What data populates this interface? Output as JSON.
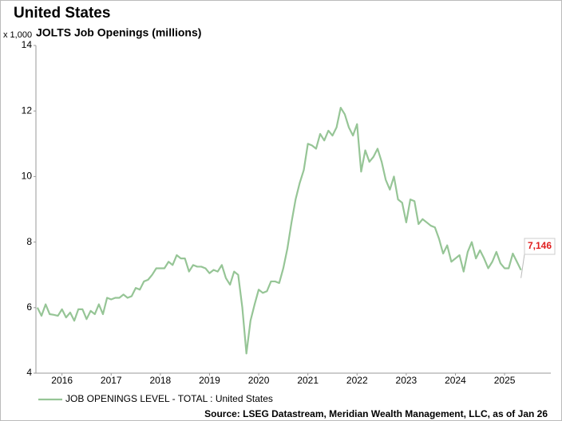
{
  "chart_data": {
    "type": "line",
    "title": "United States",
    "subtitle": "JOLTS Job Openings (millions)",
    "y_unit_label": "x 1,000",
    "source": "Source: LSEG Datastream, Meridian Wealth Management, LLC, as of Jan 26",
    "xlim": [
      2015.97,
      2026.44
    ],
    "xticks": [
      {
        "value": 2016.5,
        "label": "2016"
      },
      {
        "value": 2017.5,
        "label": "2017"
      },
      {
        "value": 2018.5,
        "label": "2018"
      },
      {
        "value": 2019.5,
        "label": "2019"
      },
      {
        "value": 2020.5,
        "label": "2020"
      },
      {
        "value": 2021.5,
        "label": "2021"
      },
      {
        "value": 2022.5,
        "label": "2022"
      },
      {
        "value": 2023.5,
        "label": "2023"
      },
      {
        "value": 2024.5,
        "label": "2024"
      },
      {
        "value": 2025.5,
        "label": "2025"
      }
    ],
    "ylim": [
      4,
      14
    ],
    "yticks": [
      4,
      6,
      8,
      10,
      12,
      14
    ],
    "grid": false,
    "x": [
      2016.0,
      2016.083,
      2016.167,
      2016.25,
      2016.333,
      2016.417,
      2016.5,
      2016.583,
      2016.667,
      2016.75,
      2016.833,
      2016.917,
      2017.0,
      2017.083,
      2017.167,
      2017.25,
      2017.333,
      2017.417,
      2017.5,
      2017.583,
      2017.667,
      2017.75,
      2017.833,
      2017.917,
      2018.0,
      2018.083,
      2018.167,
      2018.25,
      2018.333,
      2018.417,
      2018.5,
      2018.583,
      2018.667,
      2018.75,
      2018.833,
      2018.917,
      2019.0,
      2019.083,
      2019.167,
      2019.25,
      2019.333,
      2019.417,
      2019.5,
      2019.583,
      2019.667,
      2019.75,
      2019.833,
      2019.917,
      2020.0,
      2020.083,
      2020.167,
      2020.25,
      2020.333,
      2020.417,
      2020.5,
      2020.583,
      2020.667,
      2020.75,
      2020.833,
      2020.917,
      2021.0,
      2021.083,
      2021.167,
      2021.25,
      2021.333,
      2021.417,
      2021.5,
      2021.583,
      2021.667,
      2021.75,
      2021.833,
      2021.917,
      2022.0,
      2022.083,
      2022.167,
      2022.25,
      2022.333,
      2022.417,
      2022.5,
      2022.583,
      2022.667,
      2022.75,
      2022.833,
      2022.917,
      2023.0,
      2023.083,
      2023.167,
      2023.25,
      2023.333,
      2023.417,
      2023.5,
      2023.583,
      2023.667,
      2023.75,
      2023.833,
      2023.917,
      2024.0,
      2024.083,
      2024.167,
      2024.25,
      2024.333,
      2024.417,
      2024.5,
      2024.583,
      2024.667,
      2024.75,
      2024.833,
      2024.917,
      2025.0,
      2025.083,
      2025.167,
      2025.25,
      2025.333,
      2025.417,
      2025.5,
      2025.583,
      2025.667,
      2025.75,
      2025.833
    ],
    "series": [
      {
        "name": "JOB OPENINGS LEVEL - TOTAL : United States",
        "color": "#96c596",
        "values": [
          6.0,
          5.75,
          6.1,
          5.8,
          5.78,
          5.75,
          5.95,
          5.7,
          5.85,
          5.6,
          5.95,
          5.95,
          5.65,
          5.9,
          5.8,
          6.1,
          5.8,
          6.3,
          6.25,
          6.3,
          6.3,
          6.4,
          6.3,
          6.35,
          6.6,
          6.55,
          6.8,
          6.85,
          7.0,
          7.2,
          7.2,
          7.2,
          7.4,
          7.3,
          7.6,
          7.5,
          7.5,
          7.1,
          7.3,
          7.25,
          7.25,
          7.2,
          7.05,
          7.15,
          7.1,
          7.3,
          6.9,
          6.7,
          7.1,
          7.0,
          6.0,
          4.6,
          5.6,
          6.1,
          6.55,
          6.45,
          6.5,
          6.8,
          6.8,
          6.75,
          7.2,
          7.8,
          8.6,
          9.3,
          9.8,
          10.2,
          11.0,
          10.95,
          10.85,
          11.3,
          11.1,
          11.4,
          11.25,
          11.5,
          12.1,
          11.9,
          11.5,
          11.25,
          11.6,
          10.15,
          10.8,
          10.45,
          10.6,
          10.85,
          10.45,
          9.9,
          9.6,
          10.0,
          9.3,
          9.2,
          8.6,
          9.3,
          9.25,
          8.55,
          8.7,
          8.6,
          8.5,
          8.45,
          8.1,
          7.65,
          7.9,
          7.4,
          7.5,
          7.6,
          7.1,
          7.7,
          8.0,
          7.5,
          7.75,
          7.5,
          7.2,
          7.4,
          7.7,
          7.35,
          7.2,
          7.2,
          7.65,
          7.4,
          7.146
        ],
        "last_value_label": "7,146",
        "last_value_label_color": "#e02020"
      }
    ]
  }
}
